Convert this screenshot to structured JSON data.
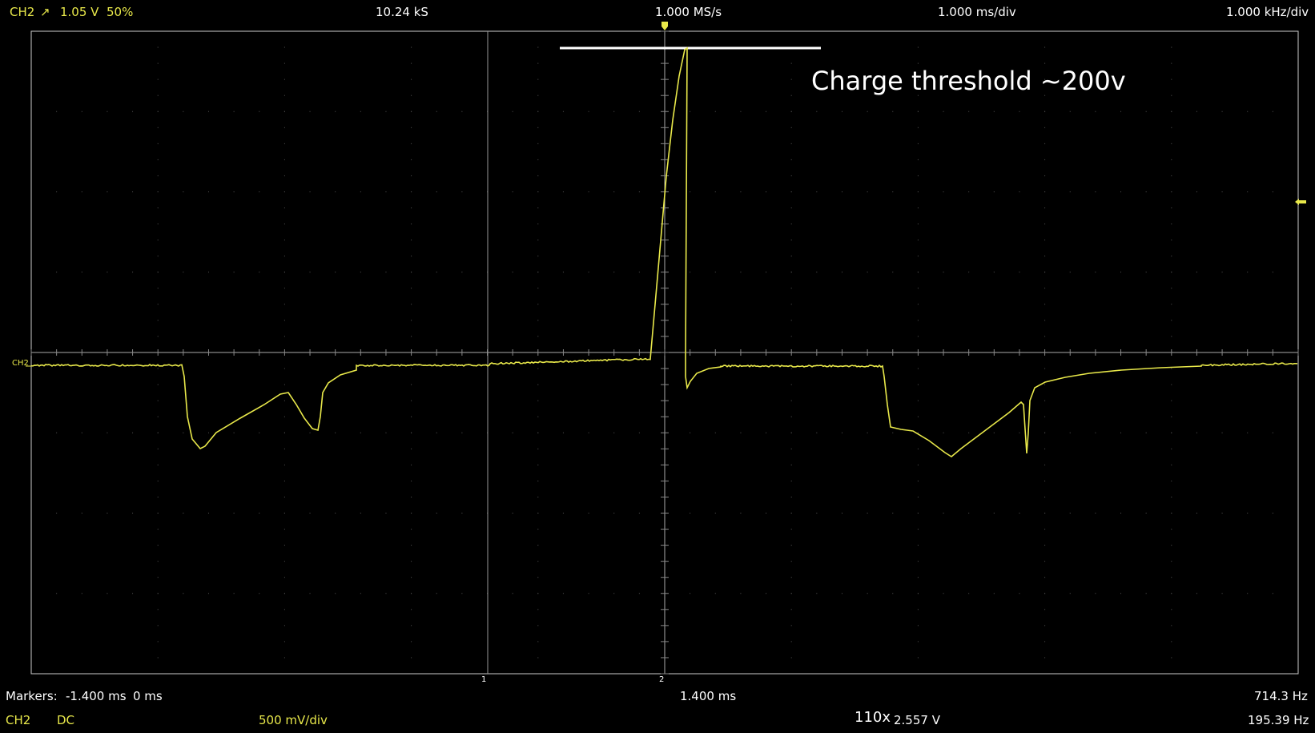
{
  "top_bar": {
    "channel": "CH2",
    "trigger_slope": "↗",
    "trigger_level": "1.05 V",
    "trigger_pos": "50%",
    "samples": "10.24 kS",
    "sample_rate": "1.000 MS/s",
    "timebase": "1.000 ms/div",
    "freq_div": "1.000 kHz/div"
  },
  "annotation": {
    "text": "Charge threshold ~200v"
  },
  "channel_marker": "CH2",
  "marker_labels": {
    "m1": "1",
    "m2": "2"
  },
  "markers": {
    "label": "Markers:",
    "t1": "-1.400 ms",
    "t2": "0 ms",
    "delta": "1.400 ms",
    "freq": "714.3 Hz"
  },
  "bottom_bar": {
    "channel": "CH2",
    "coupling": "DC",
    "volts_div": "500 mV/div",
    "zoom": "110x",
    "measure_v": "2.557 V",
    "measure_f": "195.39 Hz"
  },
  "colors": {
    "trace": "#e8e84a",
    "grid_dots": "#666666",
    "frame": "#cccccc",
    "text_yellow": "#e8e84a",
    "text_white": "#ffffff"
  },
  "icons": {
    "trigger_marker": "trigger-arrow-icon",
    "level_marker": "level-arrow-icon"
  }
}
